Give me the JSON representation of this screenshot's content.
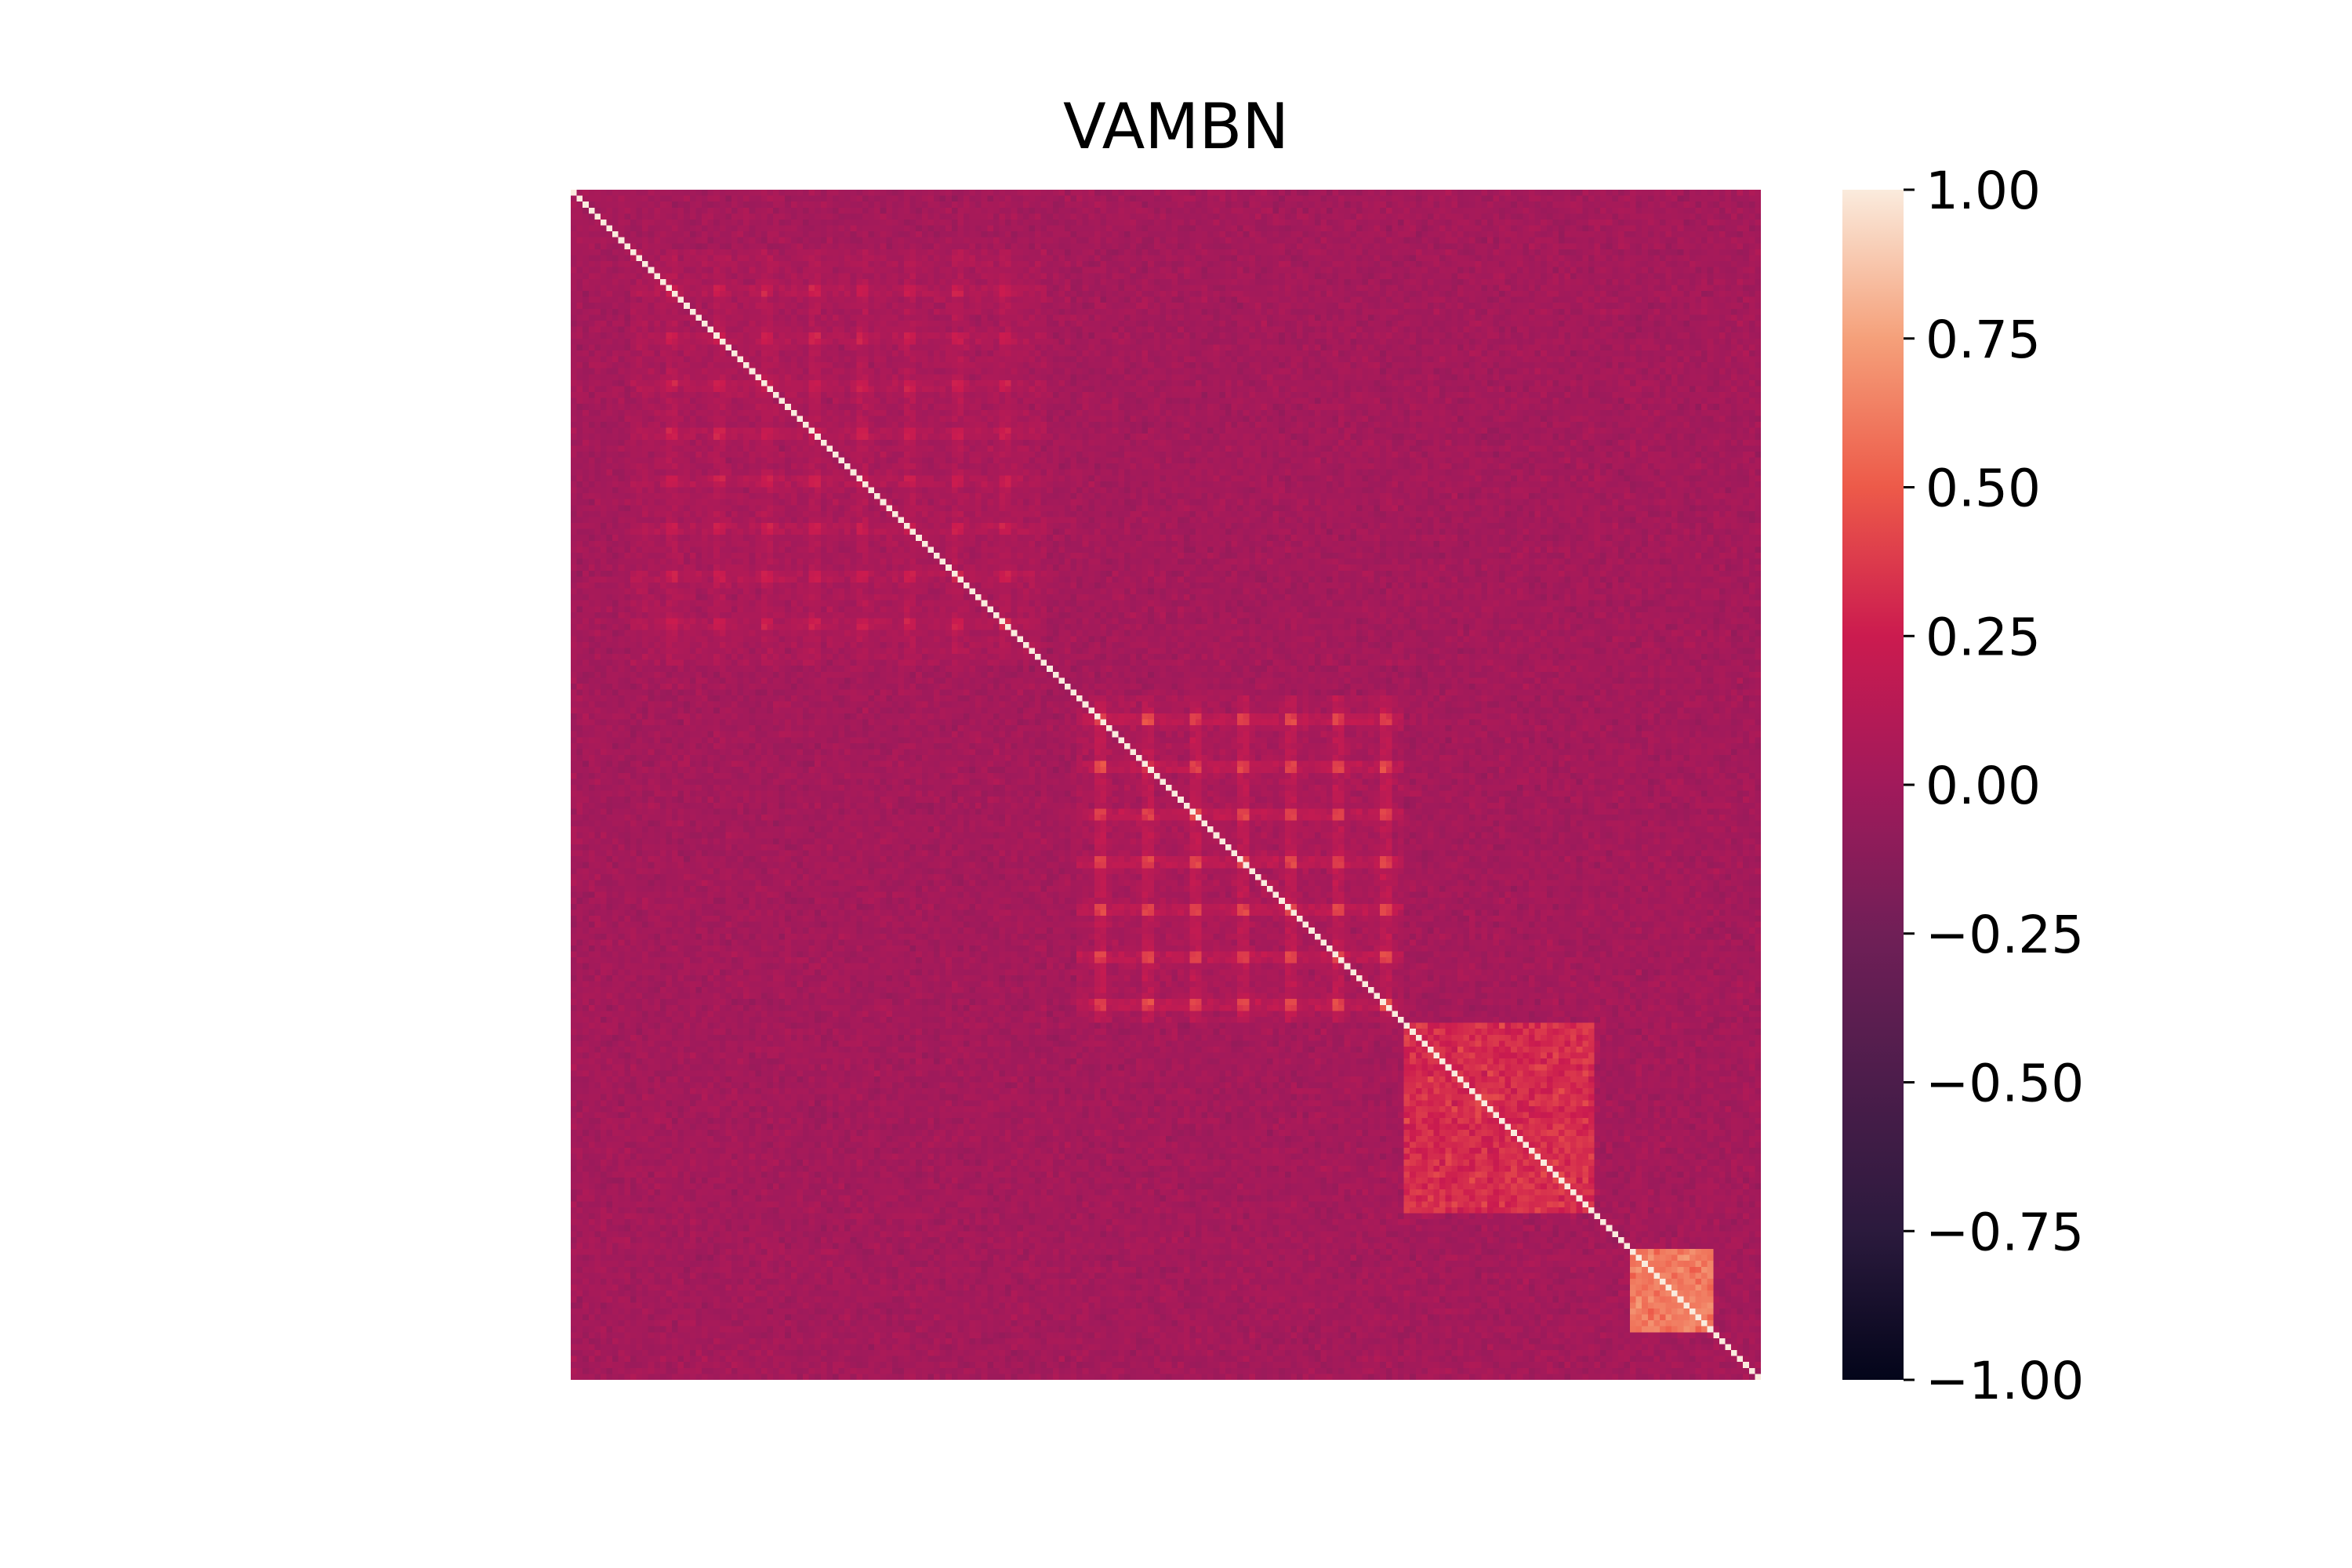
{
  "chart_data": {
    "type": "heatmap",
    "title": "VAMBN",
    "xlabel": "",
    "ylabel": "",
    "matrix_size": 200,
    "diagonal_value": 1.0,
    "background_correlation": 0.02,
    "blocks": [
      {
        "start": 10,
        "end": 80,
        "value": 0.22,
        "pattern": "checkered"
      },
      {
        "start": 85,
        "end": 140,
        "value": 0.38,
        "pattern": "checkered"
      },
      {
        "start": 140,
        "end": 172,
        "value": 0.32,
        "pattern": "smooth"
      },
      {
        "start": 178,
        "end": 192,
        "value": 0.62,
        "pattern": "smooth"
      }
    ],
    "colorbar": {
      "vmin": -1.0,
      "vmax": 1.0,
      "ticks": [
        1.0,
        0.75,
        0.5,
        0.25,
        0.0,
        -0.25,
        -0.5,
        -0.75,
        -1.0
      ],
      "tick_labels": [
        "1.00",
        "0.75",
        "0.50",
        "0.25",
        "0.00",
        "−0.25",
        "−0.50",
        "−0.75",
        "−1.00"
      ],
      "colormap": "rocket"
    },
    "axis_ticks_visible": false,
    "grid": false
  }
}
